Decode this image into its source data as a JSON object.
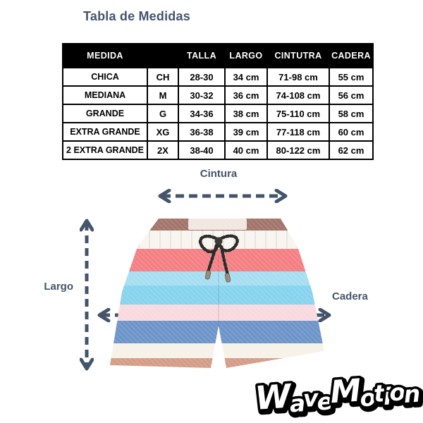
{
  "title": "Tabla de Medidas",
  "table": {
    "headers": [
      "MEDIDA",
      "",
      "TALLA",
      "LARGO",
      "CINTUTRA",
      "CADERA"
    ],
    "rows": [
      [
        "CHICA",
        "CH",
        "28-30",
        "34 cm",
        "71-98 cm",
        "55 cm"
      ],
      [
        "MEDIANA",
        "M",
        "30-32",
        "36 cm",
        "74-108 cm",
        "56 cm"
      ],
      [
        "GRANDE",
        "G",
        "34-36",
        "38 cm",
        "75-110 cm",
        "58 cm"
      ],
      [
        "EXTRA GRANDE",
        "XG",
        "36-38",
        "39 cm",
        "77-118 cm",
        "60 cm"
      ],
      [
        "2 EXTRA GRANDE",
        "2X",
        "38-40",
        "40 cm",
        "80-122 cm",
        "62 cm"
      ]
    ]
  },
  "diagram": {
    "waist_label": "Cintura",
    "length_label": "Largo",
    "hip_label": "Cadera"
  },
  "logo_text": "WaveMotion",
  "colors": {
    "accent": "#44546A",
    "table_header_bg": "#000000",
    "table_header_text": "#FFFFFF"
  },
  "shorts": {
    "stripes": [
      {
        "name": "waistband-rust",
        "color": "#a3746a"
      },
      {
        "name": "white-band",
        "color": "#f8f5ef"
      },
      {
        "name": "coral",
        "color": "#f47f83"
      },
      {
        "name": "light-blue",
        "color": "#a6def1"
      },
      {
        "name": "sky-blue",
        "color": "#87d3ee"
      },
      {
        "name": "pale-pink",
        "color": "#f8d9de"
      },
      {
        "name": "denim-blue",
        "color": "#6d94c9"
      },
      {
        "name": "cream",
        "color": "#f6f2e8"
      },
      {
        "name": "hem-tan",
        "color": "#d49c87"
      }
    ]
  }
}
